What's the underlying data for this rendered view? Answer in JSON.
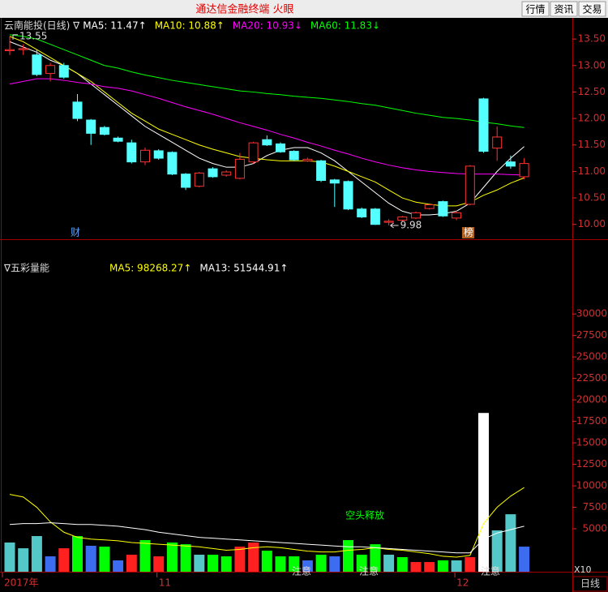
{
  "window": {
    "title": "通达信金融终端 火眼",
    "buttons": [
      "行情",
      "资讯",
      "交易"
    ],
    "period": "日线"
  },
  "chart_data": [
    {
      "type": "candlestick",
      "title": "云南能投(日线) ∇",
      "open": [
        13.28,
        13.3,
        13.2,
        12.85,
        13.0,
        12.31,
        11.97,
        11.83,
        11.63,
        11.54,
        11.18,
        11.39,
        11.36,
        10.95,
        10.72,
        11.05,
        10.93,
        10.87,
        11.18,
        11.6,
        11.52,
        11.38,
        11.2,
        11.2,
        10.84,
        10.81,
        10.29,
        10.29,
        10.04,
        10.08,
        10.12,
        10.3,
        10.43,
        10.12,
        10.38,
        12.37,
        11.44,
        11.18,
        10.9
      ],
      "high": [
        13.55,
        13.4,
        13.3,
        13.05,
        13.05,
        12.46,
        11.99,
        11.86,
        11.66,
        11.6,
        11.45,
        11.42,
        11.38,
        10.97,
        10.99,
        11.08,
        11.02,
        11.35,
        11.56,
        11.68,
        11.55,
        11.4,
        11.26,
        11.22,
        10.86,
        10.83,
        10.32,
        10.31,
        10.1,
        10.16,
        10.24,
        10.4,
        10.45,
        10.26,
        11.12,
        12.39,
        11.85,
        11.3,
        11.25
      ],
      "low": [
        13.2,
        13.2,
        12.8,
        12.7,
        12.75,
        11.95,
        11.5,
        11.68,
        11.55,
        11.15,
        11.12,
        11.22,
        10.93,
        10.65,
        10.7,
        10.88,
        10.9,
        10.85,
        11.15,
        11.48,
        11.35,
        11.2,
        11.18,
        10.8,
        10.33,
        10.27,
        10.12,
        9.99,
        9.98,
        10.05,
        10.1,
        10.28,
        10.14,
        10.08,
        10.36,
        11.35,
        11.2,
        11.05,
        10.85
      ],
      "close": [
        13.3,
        13.32,
        12.83,
        13.0,
        12.78,
        12.0,
        11.72,
        11.7,
        11.57,
        11.18,
        11.4,
        11.25,
        10.95,
        10.7,
        10.97,
        10.9,
        10.99,
        11.23,
        11.54,
        11.5,
        11.37,
        11.22,
        11.23,
        10.83,
        10.78,
        10.29,
        10.14,
        10.0,
        10.06,
        10.14,
        10.22,
        10.37,
        10.16,
        10.22,
        11.1,
        11.38,
        11.65,
        11.1,
        11.15
      ],
      "up_color": "#ff3232",
      "down_color": "#54ffff",
      "series": [
        {
          "name": "MA5: 11.47↑",
          "color": "#ffffff",
          "values": [
            13.45,
            13.35,
            13.25,
            13.1,
            13.0,
            12.85,
            12.65,
            12.45,
            12.25,
            12.05,
            11.85,
            11.7,
            11.55,
            11.4,
            11.25,
            11.15,
            11.08,
            11.08,
            11.15,
            11.3,
            11.4,
            11.45,
            11.45,
            11.35,
            11.2,
            11.0,
            10.8,
            10.6,
            10.4,
            10.25,
            10.18,
            10.18,
            10.2,
            10.25,
            10.4,
            10.7,
            11.0,
            11.25,
            11.47
          ]
        },
        {
          "name": "MA10: 10.88↑",
          "color": "#ffff00",
          "values": [
            13.55,
            13.45,
            13.3,
            13.15,
            13.0,
            12.85,
            12.7,
            12.5,
            12.3,
            12.1,
            11.95,
            11.8,
            11.7,
            11.6,
            11.5,
            11.42,
            11.35,
            11.28,
            11.25,
            11.22,
            11.2,
            11.2,
            11.2,
            11.18,
            11.1,
            11.0,
            10.9,
            10.8,
            10.65,
            10.5,
            10.42,
            10.38,
            10.35,
            10.35,
            10.42,
            10.55,
            10.65,
            10.78,
            10.88
          ]
        },
        {
          "name": "MA20: 10.93↓",
          "color": "#ff00ff",
          "values": [
            12.65,
            12.7,
            12.75,
            12.75,
            12.72,
            12.68,
            12.65,
            12.6,
            12.57,
            12.52,
            12.45,
            12.38,
            12.3,
            12.22,
            12.15,
            12.08,
            12.0,
            11.92,
            11.85,
            11.78,
            11.7,
            11.63,
            11.55,
            11.48,
            11.4,
            11.33,
            11.25,
            11.18,
            11.12,
            11.07,
            11.03,
            11.0,
            10.98,
            10.96,
            10.95,
            10.95,
            10.95,
            10.94,
            10.93
          ]
        },
        {
          "name": "MA60: 11.83↓",
          "color": "#00ff00",
          "values": [
            13.58,
            13.55,
            13.5,
            13.4,
            13.3,
            13.2,
            13.1,
            13.0,
            12.95,
            12.88,
            12.82,
            12.77,
            12.72,
            12.68,
            12.64,
            12.6,
            12.56,
            12.52,
            12.5,
            12.47,
            12.45,
            12.42,
            12.4,
            12.38,
            12.35,
            12.32,
            12.28,
            12.25,
            12.2,
            12.15,
            12.1,
            12.06,
            12.02,
            12.0,
            11.97,
            11.93,
            11.9,
            11.86,
            11.83
          ]
        }
      ],
      "ylim": [
        9.72,
        13.9
      ],
      "yticks": [
        {
          "value": 10,
          "label": "10.00"
        },
        {
          "value": 10.5,
          "label": "10.50"
        },
        {
          "value": 11,
          "label": "11.00"
        },
        {
          "value": 11.5,
          "label": "11.50"
        },
        {
          "value": 12,
          "label": "12.00"
        },
        {
          "value": 12.5,
          "label": "12.50"
        },
        {
          "value": 13,
          "label": "13.00"
        },
        {
          "value": 13.5,
          "label": "13.50"
        }
      ],
      "high_label": 13.55,
      "low_label": 9.98,
      "events": [
        "财",
        "榜"
      ]
    },
    {
      "type": "bar",
      "title": "∇五彩量能",
      "categories": [
        "2017年",
        null,
        null,
        null,
        null,
        null,
        null,
        null,
        null,
        null,
        null,
        "11",
        null,
        null,
        null,
        null,
        null,
        null,
        null,
        null,
        null,
        null,
        null,
        null,
        null,
        null,
        null,
        null,
        null,
        null,
        null,
        null,
        null,
        "12",
        null,
        null,
        null,
        null,
        null
      ],
      "values": [
        3400,
        2730,
        4150,
        1790,
        2730,
        4150,
        3020,
        2920,
        1320,
        1980,
        3680,
        1790,
        3400,
        3200,
        1980,
        1980,
        1790,
        2920,
        3400,
        2450,
        1790,
        1790,
        1320,
        1980,
        1790,
        3680,
        1980,
        3200,
        1980,
        1700,
        1130,
        1130,
        1320,
        1320,
        1700,
        18480,
        4810,
        6690,
        2920
      ],
      "colors": [
        "#54c8c8",
        "#54c8c8",
        "#54c8c8",
        "#3c6cf0",
        "#ff2020",
        "#00ff00",
        "#3c6cf0",
        "#00ff00",
        "#3c6cf0",
        "#ff2020",
        "#00ff00",
        "#ff2020",
        "#00ff00",
        "#00ff00",
        "#54c8c8",
        "#00ff00",
        "#00ff00",
        "#ff2020",
        "#ff2020",
        "#00ff00",
        "#00ff00",
        "#00ff00",
        "#3c6cf0",
        "#00ff00",
        "#3c6cf0",
        "#00ff00",
        "#00ff00",
        "#00ff00",
        "#54c8c8",
        "#00ff00",
        "#ff2020",
        "#ff2020",
        "#00ff00",
        "#54c8c8",
        "#ff2020",
        "#ffffff",
        "#54c8c8",
        "#54c8c8",
        "#3c6cf0"
      ],
      "series": [
        {
          "name": "MA5: 98268.27↑",
          "color": "#ffff00",
          "values": [
            9000,
            8700,
            7500,
            5800,
            4600,
            4000,
            3800,
            3700,
            3600,
            3400,
            3300,
            3200,
            3100,
            3000,
            2900,
            2700,
            2500,
            2600,
            2800,
            2900,
            2800,
            2600,
            2400,
            2300,
            2300,
            2500,
            2600,
            2800,
            2600,
            2500,
            2300,
            2100,
            1800,
            1700,
            1900,
            5600,
            7500,
            8800,
            9800
          ]
        },
        {
          "name": "MA13: 51544.91↑",
          "color": "#ffffff",
          "values": [
            5500,
            5600,
            5600,
            5700,
            5600,
            5500,
            5500,
            5400,
            5300,
            5100,
            4900,
            4600,
            4400,
            4200,
            4000,
            3900,
            3800,
            3700,
            3600,
            3500,
            3400,
            3300,
            3200,
            3100,
            3000,
            2900,
            2900,
            2800,
            2700,
            2600,
            2500,
            2400,
            2300,
            2200,
            2200,
            3800,
            4500,
            4900,
            5300
          ]
        }
      ],
      "ylim": [
        0,
        38700
      ],
      "yticks": [
        5000,
        7500,
        10000,
        12500,
        15000,
        17500,
        20000,
        22500,
        25000,
        27500,
        30000
      ],
      "annotations": [
        "空头释放",
        "注意",
        "注意",
        "注意"
      ],
      "scale_label": "X10"
    }
  ]
}
